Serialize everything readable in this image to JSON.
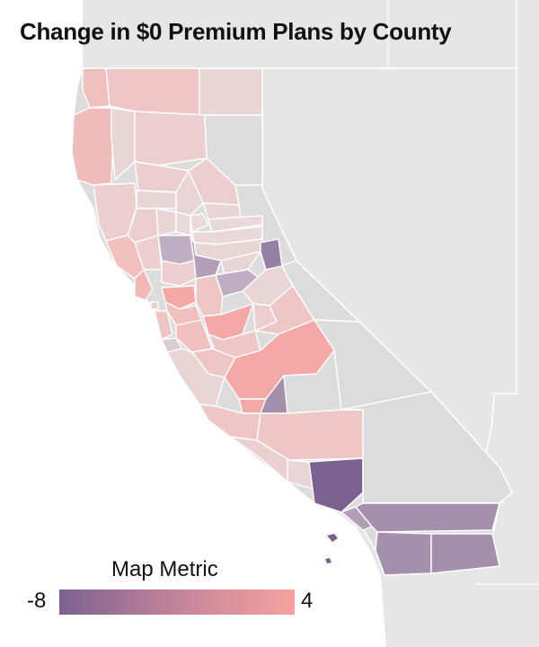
{
  "title": "Change in $0 Premium Plans by County",
  "legend": {
    "title": "Map Metric",
    "min_label": "-8",
    "max_label": "4",
    "min": -8,
    "max": 4,
    "color_min": "#7b6190",
    "color_max": "#f7a29e"
  },
  "colors": {
    "background_land": "#e6e6e6",
    "background_water": "#ffffff",
    "no_data": "#dcdcdc"
  },
  "regions": [
    {
      "name": "Del Norte",
      "metric": 2
    },
    {
      "name": "Siskiyou",
      "metric": 1.5
    },
    {
      "name": "Modoc",
      "metric": 0.5
    },
    {
      "name": "Humboldt",
      "metric": 2.2
    },
    {
      "name": "Trinity",
      "metric": 0.5
    },
    {
      "name": "Shasta",
      "metric": 1
    },
    {
      "name": "Lassen",
      "metric": null
    },
    {
      "name": "Mendocino",
      "metric": 1
    },
    {
      "name": "Tehama",
      "metric": 1
    },
    {
      "name": "Plumas",
      "metric": 1
    },
    {
      "name": "Glenn",
      "metric": 0.5
    },
    {
      "name": "Butte",
      "metric": 0.5
    },
    {
      "name": "Sierra",
      "metric": 0.5
    },
    {
      "name": "Lake",
      "metric": 1
    },
    {
      "name": "Colusa",
      "metric": 0.5
    },
    {
      "name": "Sutter",
      "metric": 0.2
    },
    {
      "name": "Yuba",
      "metric": 0.2
    },
    {
      "name": "Nevada",
      "metric": 0.3
    },
    {
      "name": "Placer",
      "metric": 0.3
    },
    {
      "name": "El Dorado",
      "metric": 0.5
    },
    {
      "name": "Sonoma",
      "metric": 2
    },
    {
      "name": "Napa",
      "metric": 1
    },
    {
      "name": "Yolo",
      "metric": -3
    },
    {
      "name": "Sacramento",
      "metric": -4
    },
    {
      "name": "Amador",
      "metric": 0.5
    },
    {
      "name": "Alpine",
      "metric": -6
    },
    {
      "name": "Marin",
      "metric": 2.5
    },
    {
      "name": "Solano",
      "metric": 1
    },
    {
      "name": "Contra Costa",
      "metric": 3.5
    },
    {
      "name": "San Joaquin",
      "metric": 1.5
    },
    {
      "name": "Calaveras",
      "metric": -3
    },
    {
      "name": "Tuolumne",
      "metric": 0.5
    },
    {
      "name": "Mono",
      "metric": null
    },
    {
      "name": "San Francisco",
      "metric": 1
    },
    {
      "name": "San Mateo",
      "metric": 1.5
    },
    {
      "name": "Alameda",
      "metric": 2
    },
    {
      "name": "Santa Clara",
      "metric": 2
    },
    {
      "name": "Stanislaus",
      "metric": 3.5
    },
    {
      "name": "Mariposa",
      "metric": 1
    },
    {
      "name": "Madera",
      "metric": 1.5
    },
    {
      "name": "Merced",
      "metric": 1.5
    },
    {
      "name": "Santa Cruz",
      "metric": -1
    },
    {
      "name": "San Benito",
      "metric": 1.5
    },
    {
      "name": "Monterey",
      "metric": 0.5
    },
    {
      "name": "Fresno",
      "metric": 3.5
    },
    {
      "name": "Kings",
      "metric": 3.5
    },
    {
      "name": "Tulare",
      "metric": -5
    },
    {
      "name": "Inyo",
      "metric": null
    },
    {
      "name": "San Luis Obispo",
      "metric": 1.5
    },
    {
      "name": "Kern",
      "metric": 1.5
    },
    {
      "name": "Santa Barbara",
      "metric": 0.8
    },
    {
      "name": "Ventura",
      "metric": 0.5
    },
    {
      "name": "Los Angeles",
      "metric": -8
    },
    {
      "name": "San Bernardino",
      "metric": null
    },
    {
      "name": "Orange",
      "metric": -4
    },
    {
      "name": "Riverside",
      "metric": -5
    },
    {
      "name": "San Diego",
      "metric": -5
    },
    {
      "name": "Imperial",
      "metric": -5
    }
  ]
}
